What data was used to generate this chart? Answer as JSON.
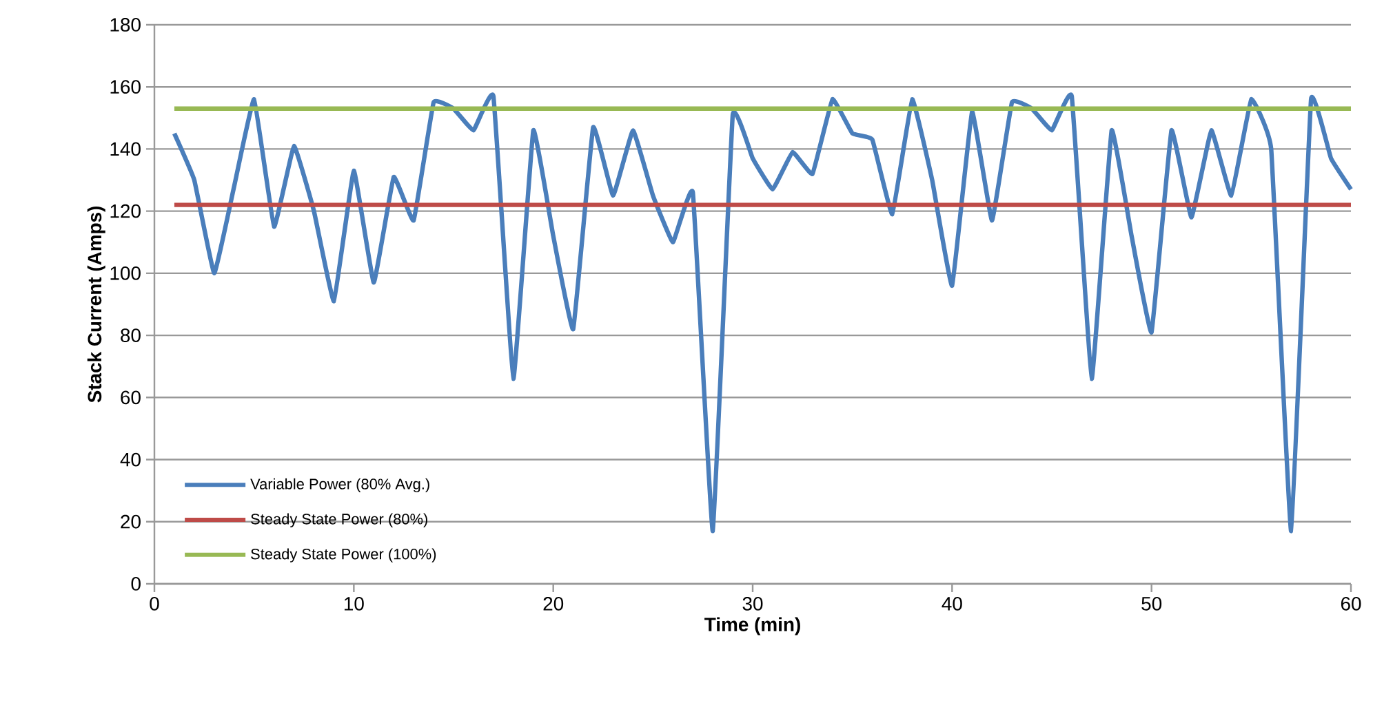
{
  "chart_data": {
    "type": "line",
    "xlabel": "Time (min)",
    "ylabel": "Stack Current (Amps)",
    "x": [
      1,
      2,
      3,
      4,
      5,
      6,
      7,
      8,
      9,
      10,
      11,
      12,
      13,
      14,
      15,
      16,
      17,
      18,
      19,
      20,
      21,
      22,
      23,
      24,
      25,
      26,
      27,
      28,
      29,
      30,
      31,
      32,
      33,
      34,
      35,
      36,
      37,
      38,
      39,
      40,
      41,
      42,
      43,
      44,
      45,
      46,
      47,
      48,
      49,
      50,
      51,
      52,
      53,
      54,
      55,
      56,
      57,
      58,
      59,
      60
    ],
    "series": [
      {
        "name": "Variable Power (80% Avg.)",
        "color": "#4a7ebb",
        "values": [
          145,
          130,
          100,
          128,
          156,
          115,
          141,
          120,
          91,
          133,
          97,
          131,
          117,
          155,
          153,
          146,
          157,
          66,
          146,
          112,
          82,
          147,
          125,
          146,
          125,
          110,
          126,
          17,
          151,
          137,
          127,
          139,
          132,
          156,
          145,
          143,
          119,
          156,
          130,
          96,
          152,
          117,
          155,
          153,
          146,
          157,
          66,
          146,
          112,
          81,
          146,
          118,
          146,
          125,
          156,
          140,
          17,
          156,
          137,
          127
        ]
      },
      {
        "name": "Steady State Power (80%)",
        "color": "#be4b48",
        "values": [
          122,
          122,
          122,
          122,
          122,
          122,
          122,
          122,
          122,
          122,
          122,
          122,
          122,
          122,
          122,
          122,
          122,
          122,
          122,
          122,
          122,
          122,
          122,
          122,
          122,
          122,
          122,
          122,
          122,
          122,
          122,
          122,
          122,
          122,
          122,
          122,
          122,
          122,
          122,
          122,
          122,
          122,
          122,
          122,
          122,
          122,
          122,
          122,
          122,
          122,
          122,
          122,
          122,
          122,
          122,
          122,
          122,
          122,
          122,
          122
        ]
      },
      {
        "name": "Steady State Power (100%)",
        "color": "#98b954",
        "values": [
          153,
          153,
          153,
          153,
          153,
          153,
          153,
          153,
          153,
          153,
          153,
          153,
          153,
          153,
          153,
          153,
          153,
          153,
          153,
          153,
          153,
          153,
          153,
          153,
          153,
          153,
          153,
          153,
          153,
          153,
          153,
          153,
          153,
          153,
          153,
          153,
          153,
          153,
          153,
          153,
          153,
          153,
          153,
          153,
          153,
          153,
          153,
          153,
          153,
          153,
          153,
          153,
          153,
          153,
          153,
          153,
          153,
          153,
          153,
          153
        ]
      }
    ],
    "xlim": [
      0,
      60
    ],
    "xticks": [
      0,
      10,
      20,
      30,
      40,
      50,
      60
    ],
    "ylim": [
      0,
      180
    ],
    "yticks": [
      0,
      20,
      40,
      60,
      80,
      100,
      120,
      140,
      160,
      180
    ],
    "grid": "y",
    "legend": "bottom left",
    "marker": "none",
    "line_style": "solid"
  }
}
